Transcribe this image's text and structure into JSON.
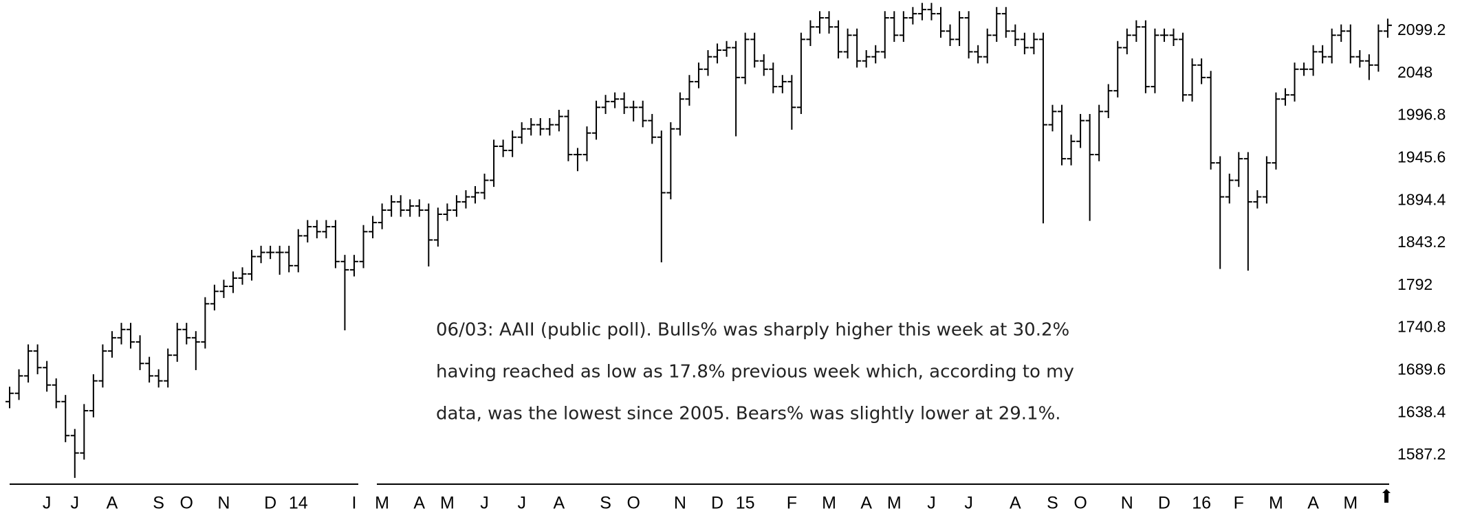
{
  "chart_data": {
    "type": "ohlc",
    "annotation": [
      "06/03: AAII (public poll).  Bulls% was sharply higher this week at 30.2%",
      "having reached as low as 17.8% previous week which, according to my",
      "data, was the lowest since 2005. Bears% was slightly lower at 29.1%."
    ],
    "categories": [
      null,
      null,
      null,
      null,
      "J",
      null,
      null,
      "J",
      null,
      null,
      null,
      "A",
      null,
      null,
      null,
      null,
      "S",
      null,
      null,
      "O",
      null,
      null,
      null,
      "N",
      null,
      null,
      null,
      null,
      "D",
      null,
      null,
      "14",
      null,
      null,
      null,
      null,
      null,
      "I",
      null,
      null,
      "M",
      null,
      null,
      null,
      "A",
      null,
      null,
      "M",
      null,
      null,
      null,
      "J",
      null,
      null,
      null,
      "J",
      null,
      null,
      null,
      "A",
      null,
      null,
      null,
      null,
      "S",
      null,
      null,
      "O",
      null,
      null,
      null,
      null,
      "N",
      null,
      null,
      null,
      "D",
      null,
      null,
      "15",
      null,
      null,
      null,
      null,
      "F",
      null,
      null,
      null,
      "M",
      null,
      null,
      null,
      "A",
      null,
      null,
      "M",
      null,
      null,
      null,
      "J",
      null,
      null,
      null,
      "J",
      null,
      null,
      null,
      null,
      "A",
      null,
      null,
      null,
      "S",
      null,
      null,
      "O",
      null,
      null,
      null,
      null,
      "N",
      null,
      null,
      null,
      "D",
      null,
      null,
      null,
      "16",
      null,
      null,
      null,
      "F",
      null,
      null,
      null,
      "M",
      null,
      null,
      null,
      "A",
      null,
      null,
      null,
      "M",
      null,
      null,
      null,
      null
    ],
    "open": [
      1652,
      1662,
      1683,
      1713,
      1693,
      1672,
      1652,
      1611,
      1590,
      1641,
      1677,
      1713,
      1729,
      1739,
      1724,
      1698,
      1683,
      1677,
      1708,
      1739,
      1729,
      1724,
      1770,
      1785,
      1791,
      1801,
      1806,
      1827,
      1832,
      1832,
      1832,
      1816,
      1852,
      1863,
      1857,
      1863,
      1821,
      1811,
      1821,
      1857,
      1868,
      1883,
      1893,
      1883,
      1888,
      1883,
      1847,
      1878,
      1883,
      1893,
      1899,
      1904,
      1919,
      1960,
      1955,
      1971,
      1981,
      1986,
      1981,
      1986,
      1996,
      1950,
      1950,
      1976,
      2007,
      2014,
      2017,
      2007,
      2007,
      1991,
      1971,
      1904,
      1981,
      2017,
      2038,
      2053,
      2068,
      2076,
      2079,
      2043,
      2089,
      2063,
      2053,
      2032,
      2038,
      2007,
      2089,
      2104,
      2115,
      2104,
      2074,
      2094,
      2063,
      2068,
      2074,
      2115,
      2094,
      2115,
      2120,
      2125,
      2120,
      2099,
      2089,
      2115,
      2074,
      2068,
      2094,
      2120,
      2099,
      2089,
      2079,
      2089,
      1986,
      2002,
      1945,
      1966,
      1991,
      1950,
      2002,
      2027,
      2079,
      2094,
      2104,
      2032,
      2094,
      2094,
      2089,
      2022,
      2058,
      2043,
      1940,
      1899,
      1919,
      1945,
      1893,
      1899,
      1940,
      2017,
      2022,
      2053,
      2053,
      2074,
      2068,
      2094,
      2099,
      2068,
      2063,
      2058,
      2099
    ],
    "high": [
      1670,
      1691,
      1721,
      1721,
      1701,
      1680,
      1660,
      1619,
      1649,
      1685,
      1721,
      1737,
      1747,
      1747,
      1732,
      1706,
      1691,
      1716,
      1747,
      1747,
      1737,
      1778,
      1793,
      1799,
      1809,
      1814,
      1835,
      1840,
      1840,
      1840,
      1840,
      1860,
      1871,
      1871,
      1871,
      1871,
      1829,
      1829,
      1865,
      1876,
      1891,
      1901,
      1901,
      1896,
      1896,
      1891,
      1886,
      1891,
      1901,
      1907,
      1912,
      1927,
      1968,
      1968,
      1979,
      1989,
      1994,
      1994,
      1994,
      2004,
      2004,
      1958,
      1984,
      2015,
      2022,
      2025,
      2025,
      2015,
      2015,
      1999,
      1979,
      1989,
      2025,
      2046,
      2061,
      2076,
      2084,
      2087,
      2087,
      2097,
      2097,
      2071,
      2061,
      2046,
      2046,
      2097,
      2112,
      2123,
      2123,
      2112,
      2102,
      2102,
      2076,
      2082,
      2123,
      2123,
      2123,
      2128,
      2133,
      2133,
      2128,
      2107,
      2123,
      2123,
      2082,
      2102,
      2128,
      2128,
      2107,
      2097,
      2097,
      2097,
      2010,
      2010,
      1974,
      1999,
      1999,
      2010,
      2035,
      2087,
      2102,
      2112,
      2112,
      2102,
      2102,
      2102,
      2097,
      2066,
      2066,
      2051,
      1948,
      1927,
      1953,
      1953,
      1907,
      1948,
      2025,
      2030,
      2061,
      2061,
      2082,
      2082,
      2102,
      2107,
      2107,
      2076,
      2071,
      2107,
      2114
    ],
    "low": [
      1644,
      1654,
      1675,
      1685,
      1664,
      1644,
      1603,
      1560,
      1582,
      1633,
      1669,
      1705,
      1721,
      1716,
      1690,
      1675,
      1669,
      1669,
      1700,
      1721,
      1690,
      1716,
      1762,
      1777,
      1783,
      1793,
      1798,
      1819,
      1824,
      1805,
      1808,
      1808,
      1844,
      1849,
      1849,
      1813,
      1738,
      1803,
      1813,
      1849,
      1860,
      1875,
      1875,
      1875,
      1875,
      1815,
      1839,
      1870,
      1875,
      1885,
      1891,
      1896,
      1911,
      1947,
      1947,
      1963,
      1973,
      1973,
      1973,
      1978,
      1942,
      1930,
      1942,
      1968,
      1999,
      2006,
      1999,
      1990,
      1983,
      1963,
      1820,
      1896,
      1973,
      2009,
      2030,
      2045,
      2060,
      2068,
      1972,
      2035,
      2055,
      2045,
      2024,
      2024,
      1980,
      1999,
      2081,
      2096,
      2096,
      2066,
      2066,
      2055,
      2055,
      2060,
      2066,
      2086,
      2086,
      2107,
      2112,
      2112,
      2091,
      2081,
      2081,
      2066,
      2060,
      2060,
      2086,
      2091,
      2081,
      2071,
      2071,
      1867,
      1978,
      1937,
      1937,
      1958,
      1870,
      1942,
      1994,
      2019,
      2071,
      2086,
      2024,
      2024,
      2086,
      2081,
      2014,
      2014,
      2035,
      1932,
      1812,
      1891,
      1911,
      1810,
      1885,
      1891,
      1932,
      2009,
      2014,
      2045,
      2045,
      2060,
      2060,
      2086,
      2060,
      2055,
      2040,
      2050,
      2091
    ],
    "close": [
      1662,
      1683,
      1713,
      1693,
      1672,
      1652,
      1611,
      1590,
      1641,
      1677,
      1713,
      1729,
      1739,
      1724,
      1698,
      1683,
      1677,
      1708,
      1739,
      1729,
      1724,
      1770,
      1785,
      1791,
      1801,
      1806,
      1827,
      1832,
      1832,
      1832,
      1816,
      1852,
      1863,
      1857,
      1863,
      1821,
      1811,
      1821,
      1857,
      1868,
      1883,
      1893,
      1883,
      1888,
      1883,
      1847,
      1878,
      1883,
      1893,
      1899,
      1904,
      1919,
      1960,
      1955,
      1971,
      1981,
      1986,
      1981,
      1986,
      1996,
      1950,
      1950,
      1976,
      2007,
      2014,
      2017,
      2007,
      2007,
      1991,
      1971,
      1904,
      1981,
      2017,
      2038,
      2053,
      2068,
      2076,
      2079,
      2043,
      2089,
      2063,
      2053,
      2032,
      2038,
      2007,
      2089,
      2104,
      2115,
      2104,
      2074,
      2094,
      2063,
      2068,
      2074,
      2115,
      2094,
      2115,
      2120,
      2125,
      2120,
      2099,
      2089,
      2115,
      2074,
      2068,
      2094,
      2120,
      2099,
      2089,
      2079,
      2089,
      1986,
      2002,
      1945,
      1966,
      1991,
      1950,
      2002,
      2027,
      2079,
      2094,
      2104,
      2032,
      2094,
      2094,
      2089,
      2022,
      2058,
      2043,
      1940,
      1899,
      1919,
      1945,
      1893,
      1899,
      1940,
      2017,
      2022,
      2053,
      2053,
      2074,
      2068,
      2094,
      2099,
      2068,
      2063,
      2058,
      2099,
      2106
    ],
    "color": "#000000",
    "ylim": [
      1552.4,
      2136.5
    ],
    "yticks": [
      1587.2,
      1638.4,
      1689.6,
      1740.8,
      1792,
      1843.2,
      1894.4,
      1945.6,
      1996.8,
      2048,
      2099.2
    ]
  }
}
